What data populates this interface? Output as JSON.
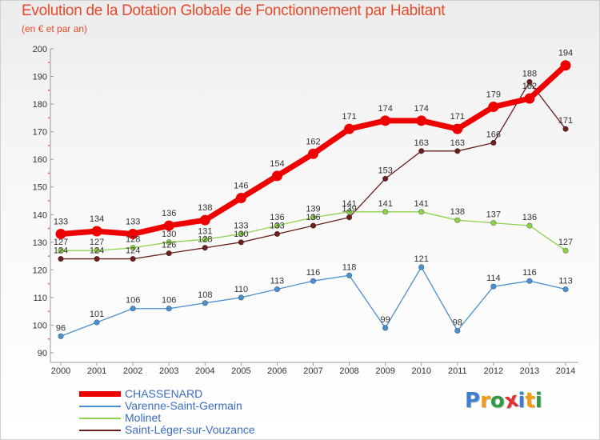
{
  "chart_data": {
    "type": "line",
    "title": "Evolution de la Dotation Globale de Fonctionnement par Habitant",
    "subtitle": "(en € et par an)",
    "xlabel": "",
    "ylabel": "",
    "ylim": [
      90,
      200
    ],
    "yticks": [
      90,
      100,
      110,
      120,
      130,
      140,
      150,
      160,
      170,
      180,
      190,
      200
    ],
    "categories": [
      "2000",
      "2001",
      "2002",
      "2003",
      "2004",
      "2005",
      "2006",
      "2007",
      "2008",
      "2009",
      "2010",
      "2011",
      "2012",
      "2013",
      "2014"
    ],
    "grid": false,
    "legend_position": "bottom-left",
    "series": [
      {
        "name": "Saint-Léger-sur-Vouzance",
        "color": "#6b1f1f",
        "values": [
          124,
          124,
          124,
          126,
          128,
          130,
          133,
          136,
          139,
          153,
          163,
          163,
          166,
          188,
          171
        ]
      },
      {
        "name": "Molinet",
        "color": "#8fd14f",
        "values": [
          127,
          127,
          128,
          130,
          131,
          133,
          136,
          139,
          141,
          141,
          141,
          138,
          137,
          136,
          127
        ]
      },
      {
        "name": "Varenne-Saint-Germain",
        "color": "#4a90d0",
        "values": [
          96,
          101,
          106,
          106,
          108,
          110,
          113,
          116,
          118,
          99,
          121,
          98,
          114,
          116,
          113
        ]
      },
      {
        "name": "CHASSENARD",
        "color": "#ee0000",
        "values": [
          133,
          134,
          133,
          136,
          138,
          146,
          154,
          162,
          171,
          174,
          174,
          171,
          179,
          182,
          194
        ]
      }
    ],
    "value_labels": {
      "Saint-Léger-sur-Vouzance": [
        "124",
        "124",
        "124",
        "126",
        "128",
        "130",
        "133",
        "136",
        "139",
        "153",
        "163",
        "163",
        "166",
        "188",
        "171"
      ],
      "Molinet": [
        "127",
        "127",
        "128",
        "130",
        "131",
        "133",
        "136",
        "139",
        "141",
        "141",
        "141",
        "138",
        "137",
        "136",
        "127"
      ],
      "Varenne-Saint-Germain": [
        "96",
        "101",
        "106",
        "106",
        "108",
        "110",
        "113",
        "116",
        "118",
        "99",
        "121",
        "98",
        "114",
        "116",
        "113"
      ],
      "CHASSENARD": [
        "133",
        "134",
        "133",
        "136",
        "138",
        "146",
        "154",
        "162",
        "171",
        "174",
        "174",
        "171",
        "179",
        "182",
        "194"
      ]
    }
  },
  "legend": {
    "items": [
      {
        "label": "CHASSENARD",
        "color": "#ee0000"
      },
      {
        "label": "Varenne-Saint-Germain",
        "color": "#4a90d0"
      },
      {
        "label": "Molinet",
        "color": "#8fd14f"
      },
      {
        "label": "Saint-Léger-sur-Vouzance",
        "color": "#6b1f1f"
      }
    ]
  },
  "logo": {
    "text": "Proxiti",
    "letter_colors": [
      "#3a7fd0",
      "#f39c12",
      "#2e9a44",
      "#e03131",
      "#3a7fd0",
      "#f39c12",
      "#2e9a44"
    ]
  }
}
